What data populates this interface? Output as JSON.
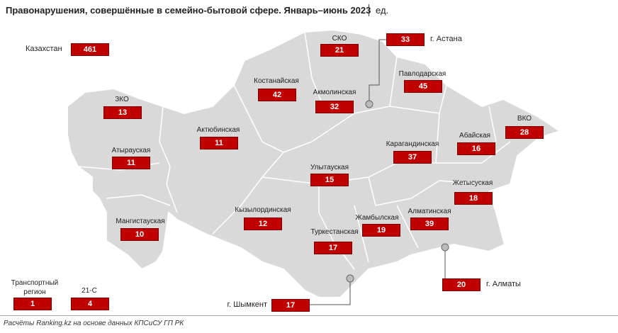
{
  "title": "Правонарушения, совершённые в семейно-бытовой сфере. Январь–июнь 2023",
  "unit": "ед.",
  "total": {
    "label": "Казахстан",
    "value": 461
  },
  "regions": [
    {
      "name": "ЗКО",
      "value": 13
    },
    {
      "name": "Атырауская",
      "value": 11
    },
    {
      "name": "Мангистауская",
      "value": 10
    },
    {
      "name": "Актюбинская",
      "value": 11
    },
    {
      "name": "Костанайская",
      "value": 42
    },
    {
      "name": "СКО",
      "value": 21
    },
    {
      "name": "Акмолинская",
      "value": 32
    },
    {
      "name": "Павлодарская",
      "value": 45
    },
    {
      "name": "ВКО",
      "value": 28
    },
    {
      "name": "Абайская",
      "value": 16
    },
    {
      "name": "Карагандинская",
      "value": 37
    },
    {
      "name": "Улытауская",
      "value": 15
    },
    {
      "name": "Жетысуская",
      "value": 18
    },
    {
      "name": "Кызылординская",
      "value": 12
    },
    {
      "name": "Жамбылская",
      "value": 19
    },
    {
      "name": "Алматинская",
      "value": 39
    },
    {
      "name": "Туркестанская",
      "value": 17
    }
  ],
  "cities": [
    {
      "name": "г. Астана",
      "value": 33
    },
    {
      "name": "г. Алматы",
      "value": 20
    },
    {
      "name": "г. Шымкент",
      "value": 17
    }
  ],
  "other": [
    {
      "name": "Транспортный регион",
      "value": 1
    },
    {
      "name": "21-С",
      "value": 4
    }
  ],
  "source": "Расчёты Ranking.kz на основе данных КПСиСУ ГП РК"
}
